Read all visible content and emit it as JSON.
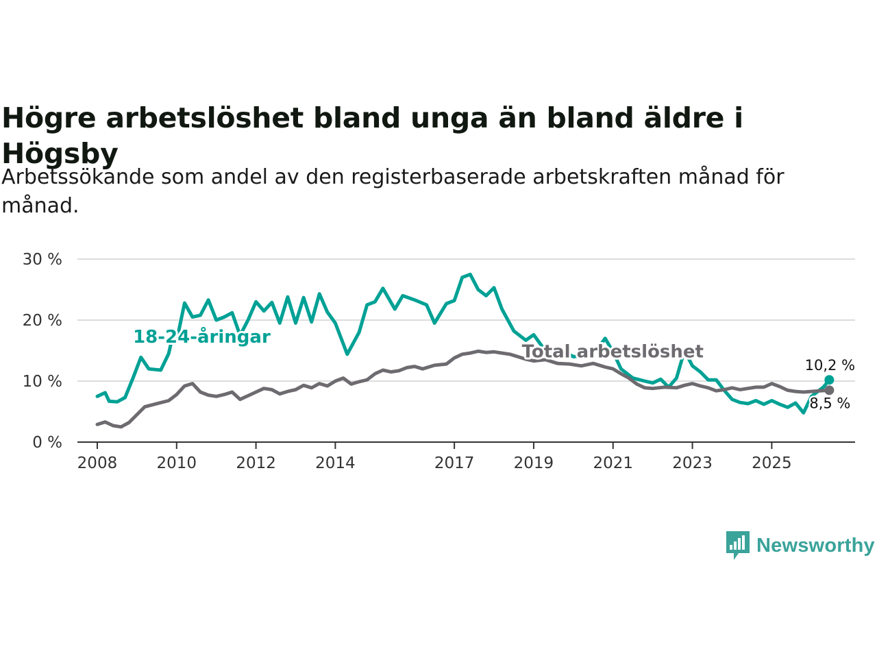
{
  "chart_data": {
    "type": "line",
    "title": "Högre arbetslöshet bland unga än bland äldre i Högsby",
    "subtitle": "Arbetssökande som andel av den registerbaserade arbetskraften månad för månad.",
    "xlabel": "",
    "ylabel": "",
    "xlim": [
      2007.5,
      2027.1
    ],
    "ylim": [
      0,
      30
    ],
    "grid": true,
    "x_ticks": [
      {
        "value": 2008,
        "label": "2008"
      },
      {
        "value": 2010,
        "label": "2010"
      },
      {
        "value": 2012,
        "label": "2012"
      },
      {
        "value": 2014,
        "label": "2014"
      },
      {
        "value": 2017,
        "label": "2017"
      },
      {
        "value": 2019,
        "label": "2019"
      },
      {
        "value": 2021,
        "label": "2021"
      },
      {
        "value": 2023,
        "label": "2023"
      },
      {
        "value": 2025,
        "label": "2025"
      }
    ],
    "y_ticks": [
      {
        "value": 0,
        "label": "0 %"
      },
      {
        "value": 10,
        "label": "10 %"
      },
      {
        "value": 20,
        "label": "20 %"
      },
      {
        "value": 30,
        "label": "30 %"
      }
    ],
    "series": [
      {
        "name": "18-24-åringar",
        "color": "#00a195",
        "label_at": [
          2008.9,
          16.3
        ],
        "points": [
          [
            2008.0,
            7.5
          ],
          [
            2008.2,
            8.1
          ],
          [
            2008.3,
            6.7
          ],
          [
            2008.5,
            6.6
          ],
          [
            2008.7,
            7.3
          ],
          [
            2008.9,
            10.5
          ],
          [
            2009.1,
            13.9
          ],
          [
            2009.3,
            12.0
          ],
          [
            2009.6,
            11.8
          ],
          [
            2009.8,
            14.5
          ],
          [
            2009.9,
            17.4
          ],
          [
            2010.0,
            16.6
          ],
          [
            2010.2,
            22.8
          ],
          [
            2010.4,
            20.5
          ],
          [
            2010.6,
            20.8
          ],
          [
            2010.8,
            23.3
          ],
          [
            2011.0,
            20.0
          ],
          [
            2011.2,
            20.5
          ],
          [
            2011.4,
            21.2
          ],
          [
            2011.6,
            17.5
          ],
          [
            2011.8,
            20.0
          ],
          [
            2012.0,
            23.0
          ],
          [
            2012.2,
            21.5
          ],
          [
            2012.4,
            22.9
          ],
          [
            2012.6,
            19.5
          ],
          [
            2012.8,
            23.8
          ],
          [
            2013.0,
            19.5
          ],
          [
            2013.2,
            23.7
          ],
          [
            2013.4,
            19.7
          ],
          [
            2013.6,
            24.3
          ],
          [
            2013.8,
            21.3
          ],
          [
            2014.0,
            19.5
          ],
          [
            2014.3,
            14.4
          ],
          [
            2014.6,
            18.0
          ],
          [
            2014.8,
            22.5
          ],
          [
            2015.0,
            23.0
          ],
          [
            2015.2,
            25.2
          ],
          [
            2015.5,
            21.8
          ],
          [
            2015.7,
            24.0
          ],
          [
            2016.0,
            23.3
          ],
          [
            2016.3,
            22.5
          ],
          [
            2016.5,
            19.5
          ],
          [
            2016.8,
            22.7
          ],
          [
            2017.0,
            23.2
          ],
          [
            2017.2,
            27.0
          ],
          [
            2017.4,
            27.5
          ],
          [
            2017.6,
            25.0
          ],
          [
            2017.8,
            24.0
          ],
          [
            2018.0,
            25.3
          ],
          [
            2018.2,
            21.8
          ],
          [
            2018.5,
            18.2
          ],
          [
            2018.8,
            16.7
          ],
          [
            2019.0,
            17.6
          ],
          [
            2019.2,
            15.8
          ],
          [
            2019.4,
            14.2
          ],
          [
            2019.7,
            15.1
          ],
          [
            2020.0,
            14.0
          ],
          [
            2020.3,
            14.2
          ],
          [
            2020.6,
            15.2
          ],
          [
            2020.8,
            17.0
          ],
          [
            2021.0,
            14.8
          ],
          [
            2021.2,
            12.0
          ],
          [
            2021.5,
            10.5
          ],
          [
            2021.8,
            10.0
          ],
          [
            2022.0,
            9.7
          ],
          [
            2022.2,
            10.3
          ],
          [
            2022.4,
            9.0
          ],
          [
            2022.6,
            10.5
          ],
          [
            2022.8,
            15.0
          ],
          [
            2023.0,
            12.5
          ],
          [
            2023.2,
            11.5
          ],
          [
            2023.4,
            10.2
          ],
          [
            2023.6,
            10.2
          ],
          [
            2023.8,
            8.5
          ],
          [
            2024.0,
            7.0
          ],
          [
            2024.2,
            6.5
          ],
          [
            2024.4,
            6.3
          ],
          [
            2024.6,
            6.8
          ],
          [
            2024.8,
            6.2
          ],
          [
            2025.0,
            6.8
          ],
          [
            2025.2,
            6.2
          ],
          [
            2025.4,
            5.7
          ],
          [
            2025.6,
            6.4
          ],
          [
            2025.8,
            4.8
          ],
          [
            2026.0,
            7.5
          ],
          [
            2026.2,
            8.5
          ],
          [
            2026.3,
            9.0
          ],
          [
            2026.45,
            10.2
          ]
        ]
      },
      {
        "name": "Total arbetslöshet",
        "color": "#6e6b70",
        "label_at": [
          2018.7,
          13.9
        ],
        "points": [
          [
            2008.0,
            2.9
          ],
          [
            2008.2,
            3.3
          ],
          [
            2008.4,
            2.7
          ],
          [
            2008.6,
            2.5
          ],
          [
            2008.8,
            3.2
          ],
          [
            2009.0,
            4.5
          ],
          [
            2009.2,
            5.8
          ],
          [
            2009.5,
            6.3
          ],
          [
            2009.8,
            6.8
          ],
          [
            2010.0,
            7.8
          ],
          [
            2010.2,
            9.2
          ],
          [
            2010.4,
            9.6
          ],
          [
            2010.6,
            8.2
          ],
          [
            2010.8,
            7.7
          ],
          [
            2011.0,
            7.5
          ],
          [
            2011.2,
            7.8
          ],
          [
            2011.4,
            8.2
          ],
          [
            2011.6,
            7.0
          ],
          [
            2011.8,
            7.6
          ],
          [
            2012.0,
            8.2
          ],
          [
            2012.2,
            8.8
          ],
          [
            2012.4,
            8.6
          ],
          [
            2012.6,
            7.9
          ],
          [
            2012.8,
            8.3
          ],
          [
            2013.0,
            8.6
          ],
          [
            2013.2,
            9.3
          ],
          [
            2013.4,
            8.9
          ],
          [
            2013.6,
            9.6
          ],
          [
            2013.8,
            9.2
          ],
          [
            2014.0,
            10.0
          ],
          [
            2014.2,
            10.5
          ],
          [
            2014.4,
            9.5
          ],
          [
            2014.6,
            9.9
          ],
          [
            2014.8,
            10.2
          ],
          [
            2015.0,
            11.2
          ],
          [
            2015.2,
            11.8
          ],
          [
            2015.4,
            11.5
          ],
          [
            2015.6,
            11.7
          ],
          [
            2015.8,
            12.2
          ],
          [
            2016.0,
            12.4
          ],
          [
            2016.2,
            12.0
          ],
          [
            2016.5,
            12.6
          ],
          [
            2016.8,
            12.8
          ],
          [
            2017.0,
            13.8
          ],
          [
            2017.2,
            14.4
          ],
          [
            2017.4,
            14.6
          ],
          [
            2017.6,
            14.9
          ],
          [
            2017.8,
            14.7
          ],
          [
            2018.0,
            14.8
          ],
          [
            2018.2,
            14.6
          ],
          [
            2018.4,
            14.4
          ],
          [
            2018.6,
            14.0
          ],
          [
            2018.8,
            13.6
          ],
          [
            2019.0,
            13.3
          ],
          [
            2019.3,
            13.5
          ],
          [
            2019.6,
            12.9
          ],
          [
            2019.9,
            12.8
          ],
          [
            2020.2,
            12.5
          ],
          [
            2020.5,
            12.9
          ],
          [
            2020.8,
            12.3
          ],
          [
            2021.0,
            12.0
          ],
          [
            2021.2,
            11.2
          ],
          [
            2021.4,
            10.5
          ],
          [
            2021.6,
            9.5
          ],
          [
            2021.8,
            8.9
          ],
          [
            2022.0,
            8.8
          ],
          [
            2022.3,
            9.0
          ],
          [
            2022.6,
            8.9
          ],
          [
            2022.8,
            9.3
          ],
          [
            2023.0,
            9.6
          ],
          [
            2023.2,
            9.2
          ],
          [
            2023.4,
            8.9
          ],
          [
            2023.6,
            8.4
          ],
          [
            2023.8,
            8.6
          ],
          [
            2024.0,
            8.9
          ],
          [
            2024.2,
            8.6
          ],
          [
            2024.4,
            8.8
          ],
          [
            2024.6,
            9.0
          ],
          [
            2024.8,
            9.0
          ],
          [
            2025.0,
            9.6
          ],
          [
            2025.2,
            9.1
          ],
          [
            2025.4,
            8.5
          ],
          [
            2025.6,
            8.3
          ],
          [
            2025.8,
            8.2
          ],
          [
            2026.0,
            8.3
          ],
          [
            2026.2,
            8.4
          ],
          [
            2026.45,
            8.5
          ]
        ]
      }
    ],
    "annotations": [
      {
        "series": 0,
        "x": 2026.45,
        "y": 10.2,
        "label": "10,2 %",
        "position": "above"
      },
      {
        "series": 1,
        "x": 2026.45,
        "y": 8.5,
        "label": "8,5 %",
        "position": "below"
      }
    ]
  },
  "branding": {
    "name": "Newsworthy",
    "icon": "newsworthy-logo-icon",
    "color": "#3aa39a"
  }
}
